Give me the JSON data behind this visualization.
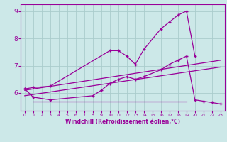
{
  "xlabel": "Windchill (Refroidissement éolien,°C)",
  "background_color": "#cce8e8",
  "grid_color": "#aacccc",
  "line_color": "#990099",
  "xlim": [
    -0.5,
    23.5
  ],
  "ylim": [
    5.35,
    9.25
  ],
  "yticks": [
    6,
    7,
    8,
    9
  ],
  "xticks": [
    0,
    1,
    2,
    3,
    4,
    5,
    6,
    7,
    8,
    9,
    10,
    11,
    12,
    13,
    14,
    15,
    16,
    17,
    18,
    19,
    20,
    21,
    22,
    23
  ],
  "series1_x": [
    0,
    1,
    3,
    10,
    11,
    12,
    13,
    14,
    16,
    17,
    18,
    19,
    20
  ],
  "series1_y": [
    6.15,
    6.2,
    6.25,
    7.55,
    7.55,
    7.35,
    7.05,
    7.6,
    8.35,
    8.6,
    8.85,
    9.0,
    7.35
  ],
  "series2_x": [
    0,
    1,
    3,
    8,
    9,
    10,
    11,
    12,
    13,
    14,
    16,
    17,
    18,
    19,
    20,
    21,
    22,
    23
  ],
  "series2_y": [
    6.15,
    5.85,
    5.75,
    5.9,
    6.1,
    6.35,
    6.5,
    6.6,
    6.5,
    6.6,
    6.85,
    7.05,
    7.2,
    7.35,
    5.75,
    5.7,
    5.65,
    5.6
  ],
  "series3_x": [
    1,
    19
  ],
  "series3_y": [
    5.7,
    5.7
  ],
  "line1_x": [
    0,
    23
  ],
  "line1_y": [
    6.1,
    7.2
  ],
  "line2_x": [
    0,
    23
  ],
  "line2_y": [
    5.9,
    6.95
  ]
}
